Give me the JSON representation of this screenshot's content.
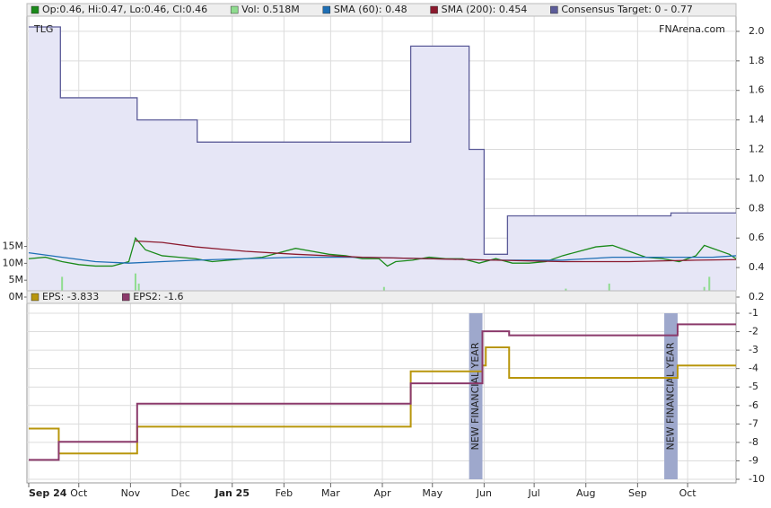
{
  "chart_data": [
    {
      "type": "line",
      "title": "TLG",
      "brand": "FNArena.com",
      "ylim": [
        0.2,
        2.03
      ],
      "yticks": [
        0.2,
        0.4,
        0.6,
        0.8,
        {
          "value": 1,
          "label": "1.0"
        },
        1.2,
        1.4,
        1.6,
        1.8,
        {
          "value": 2,
          "label": "2.0"
        }
      ],
      "y2lim": [
        0,
        80000000
      ],
      "y2ticks": [
        {
          "value": 0,
          "label": "0M"
        },
        {
          "value": 5000000,
          "label": "5M"
        },
        {
          "value": 10000000,
          "label": "10M"
        },
        {
          "value": 15000000,
          "label": "15M"
        }
      ],
      "grid": true,
      "series": [
        {
          "name": "Op:0.46, Hi:0.47, Lo:0.46, Cl:0.46",
          "color": "#1a8a1a",
          "x": [
            0,
            10,
            20,
            30,
            40,
            50,
            60,
            64,
            70,
            80,
            90,
            100,
            110,
            120,
            130,
            140,
            150,
            160,
            170,
            180,
            190,
            200,
            210,
            215,
            220,
            230,
            240,
            250,
            260,
            270,
            280,
            290,
            300,
            310,
            320,
            330,
            340,
            350,
            360,
            370,
            380,
            390,
            400,
            405,
            410,
            420,
            424
          ],
          "values": [
            0.46,
            0.47,
            0.44,
            0.42,
            0.41,
            0.41,
            0.44,
            0.6,
            0.52,
            0.48,
            0.47,
            0.46,
            0.44,
            0.45,
            0.46,
            0.47,
            0.5,
            0.53,
            0.51,
            0.49,
            0.48,
            0.46,
            0.46,
            0.41,
            0.44,
            0.45,
            0.47,
            0.46,
            0.46,
            0.43,
            0.46,
            0.43,
            0.43,
            0.44,
            0.48,
            0.51,
            0.54,
            0.55,
            0.51,
            0.47,
            0.46,
            0.44,
            0.48,
            0.55,
            0.53,
            0.49,
            0.46
          ]
        },
        {
          "name": "Vol: 0.518M",
          "color": "#8fdc8f",
          "type": "bar",
          "axis": "y2",
          "x": [
            5,
            15,
            20,
            35,
            45,
            55,
            64,
            66,
            75,
            90,
            110,
            130,
            150,
            165,
            180,
            200,
            213,
            230,
            250,
            270,
            290,
            310,
            322,
            335,
            348,
            360,
            375,
            390,
            405,
            408,
            415
          ],
          "values": [
            1500000,
            1200000,
            6000000,
            900000,
            1100000,
            800000,
            7000000,
            4000000,
            2000000,
            900000,
            700000,
            800000,
            1000000,
            1200000,
            900000,
            800000,
            3000000,
            900000,
            1100000,
            800000,
            1500000,
            900000,
            2500000,
            1200000,
            4000000,
            1500000,
            900000,
            1000000,
            3000000,
            6000000,
            2000000
          ]
        },
        {
          "name": "SMA (60): 0.48",
          "color": "#1e6fb5",
          "x": [
            0,
            20,
            40,
            60,
            80,
            100,
            130,
            160,
            200,
            240,
            280,
            320,
            350,
            380,
            410,
            424
          ],
          "values": [
            0.5,
            0.47,
            0.44,
            0.43,
            0.44,
            0.45,
            0.46,
            0.47,
            0.47,
            0.46,
            0.45,
            0.45,
            0.47,
            0.47,
            0.47,
            0.48
          ]
        },
        {
          "name": "SMA (200): 0.454",
          "color": "#8b1a2e",
          "x": [
            64,
            80,
            100,
            130,
            160,
            200,
            240,
            280,
            320,
            360,
            400,
            424
          ],
          "values": [
            0.58,
            0.57,
            0.54,
            0.51,
            0.49,
            0.47,
            0.46,
            0.45,
            0.44,
            0.44,
            0.45,
            0.454
          ]
        },
        {
          "name": "Consensus Target: 0 - 0.77",
          "color": "#5c5c99",
          "fill": "#e6e6f6",
          "x": [
            0,
            19,
            19,
            65,
            65,
            101,
            101,
            229,
            229,
            264,
            264,
            273,
            273,
            287,
            287,
            385,
            385,
            424
          ],
          "values": [
            2.03,
            2.03,
            1.55,
            1.55,
            1.4,
            1.4,
            1.25,
            1.25,
            1.9,
            1.9,
            1.2,
            1.2,
            0.49,
            0.49,
            0.75,
            0.75,
            0.77,
            0.77
          ]
        }
      ]
    },
    {
      "type": "line",
      "ylim": [
        -10,
        -1
      ],
      "yticks": [
        -10,
        -9,
        -8,
        -7,
        -6,
        -5,
        -4,
        -3,
        -2,
        -1
      ],
      "xlim": [
        0,
        424
      ],
      "xticks": [
        {
          "value": 0,
          "label": "Sep 24"
        },
        {
          "value": 30,
          "label": "Oct"
        },
        {
          "value": 61,
          "label": "Nov"
        },
        {
          "value": 91,
          "label": "Dec"
        },
        {
          "value": 122,
          "label": "Jan 25"
        },
        {
          "value": 153,
          "label": "Feb"
        },
        {
          "value": 181,
          "label": "Mar"
        },
        {
          "value": 212,
          "label": "Apr"
        },
        {
          "value": 242,
          "label": "May"
        },
        {
          "value": 273,
          "label": "Jun"
        },
        {
          "value": 303,
          "label": "Jul"
        },
        {
          "value": 334,
          "label": "Aug"
        },
        {
          "value": 365,
          "label": "Sep"
        },
        {
          "value": 395,
          "label": "Oct"
        }
      ],
      "grid": true,
      "series": [
        {
          "name": "EPS: -3.833",
          "color": "#b8960c",
          "x": [
            0,
            18,
            18,
            65,
            65,
            229,
            229,
            272,
            272,
            274,
            274,
            288,
            288,
            389,
            389,
            424
          ],
          "values": [
            -7.25,
            -7.25,
            -8.6,
            -8.6,
            -7.15,
            -7.15,
            -4.15,
            -4.15,
            -3.833,
            -3.833,
            -2.85,
            -2.85,
            -4.5,
            -4.5,
            -3.833,
            -3.833
          ]
        },
        {
          "name": "EPS2: -1.6",
          "color": "#8b3a6b",
          "x": [
            0,
            18,
            18,
            65,
            65,
            229,
            229,
            272,
            272,
            288,
            288,
            389,
            389,
            424
          ],
          "values": [
            -8.95,
            -8.95,
            -7.97,
            -7.97,
            -5.9,
            -5.9,
            -4.8,
            -4.8,
            -1.98,
            -1.98,
            -2.2,
            -2.2,
            -1.6,
            -1.6
          ]
        }
      ],
      "annotations": [
        {
          "text": "NEW FINANCIAL YEAR",
          "x": [
            264,
            272
          ]
        },
        {
          "text": "NEW FINANCIAL YEAR",
          "x": [
            381,
            389
          ]
        }
      ]
    }
  ]
}
